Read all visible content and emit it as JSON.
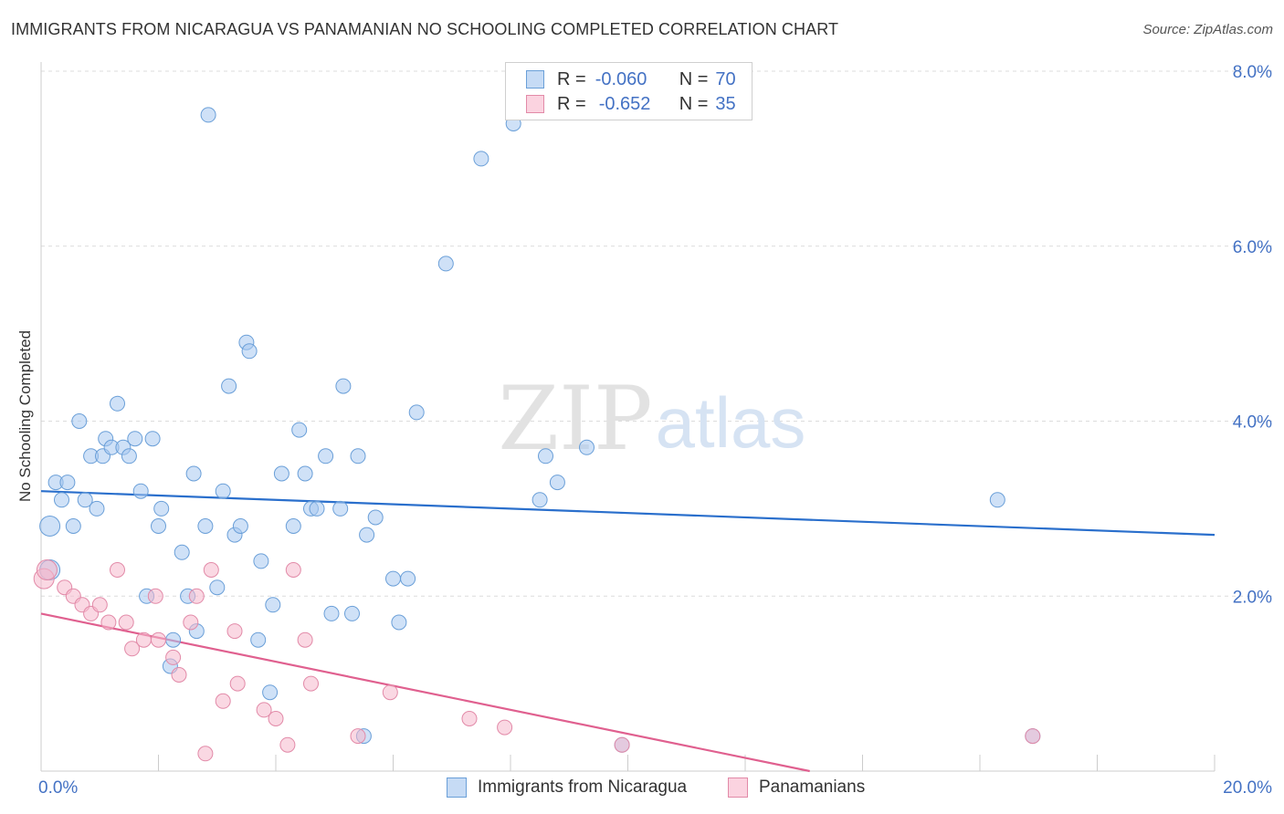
{
  "title": "IMMIGRANTS FROM NICARAGUA VS PANAMANIAN NO SCHOOLING COMPLETED CORRELATION CHART",
  "source": "Source: ZipAtlas.com",
  "watermark": {
    "zip": "ZIP",
    "atlas": "atlas"
  },
  "legend": {
    "rows": [
      {
        "r_label": "R =",
        "r_value": "-0.060",
        "n_label": "N =",
        "n_value": "70",
        "color": "#a8c8f0"
      },
      {
        "r_label": "R =",
        "r_value": "-0.652",
        "n_label": "N =",
        "n_value": "35",
        "color": "#f6b8cc"
      }
    ]
  },
  "bottom_legend": [
    "Immigrants from Nicaragua",
    "Panamanians"
  ],
  "chart_data": {
    "type": "scatter",
    "ylabel": "No Schooling Completed",
    "xlim": [
      0,
      20
    ],
    "ylim": [
      0,
      8
    ],
    "x_tick_labels": [
      "0.0%",
      "20.0%"
    ],
    "y_tick_labels": [
      "2.0%",
      "4.0%",
      "6.0%",
      "8.0%"
    ],
    "y_ticks": [
      2,
      4,
      6,
      8
    ],
    "grid": true,
    "legend_placement": "top-center",
    "series": [
      {
        "name": "Immigrants from Nicaragua",
        "color": "#a8c8f0",
        "stroke": "#6a9fd8",
        "trend_color": "#2a6fcc",
        "trend": [
          [
            0,
            3.2
          ],
          [
            20,
            2.7
          ]
        ],
        "points": [
          [
            0.15,
            2.3
          ],
          [
            0.15,
            2.8
          ],
          [
            0.25,
            3.3
          ],
          [
            0.35,
            3.1
          ],
          [
            0.45,
            3.3
          ],
          [
            0.55,
            2.8
          ],
          [
            0.65,
            4.0
          ],
          [
            0.75,
            3.1
          ],
          [
            0.85,
            3.6
          ],
          [
            0.95,
            3.0
          ],
          [
            1.05,
            3.6
          ],
          [
            1.1,
            3.8
          ],
          [
            1.2,
            3.7
          ],
          [
            1.3,
            4.2
          ],
          [
            1.4,
            3.7
          ],
          [
            1.5,
            3.6
          ],
          [
            1.6,
            3.8
          ],
          [
            1.7,
            3.2
          ],
          [
            1.8,
            2.0
          ],
          [
            1.9,
            3.8
          ],
          [
            2.0,
            2.8
          ],
          [
            2.05,
            3.0
          ],
          [
            2.2,
            1.2
          ],
          [
            2.25,
            1.5
          ],
          [
            2.4,
            2.5
          ],
          [
            2.5,
            2.0
          ],
          [
            2.6,
            3.4
          ],
          [
            2.65,
            1.6
          ],
          [
            2.8,
            2.8
          ],
          [
            2.85,
            7.5
          ],
          [
            3.0,
            2.1
          ],
          [
            3.1,
            3.2
          ],
          [
            3.2,
            4.4
          ],
          [
            3.3,
            2.7
          ],
          [
            3.4,
            2.8
          ],
          [
            3.5,
            4.9
          ],
          [
            3.55,
            4.8
          ],
          [
            3.7,
            1.5
          ],
          [
            3.75,
            2.4
          ],
          [
            3.9,
            0.9
          ],
          [
            3.95,
            1.9
          ],
          [
            4.1,
            3.4
          ],
          [
            4.3,
            2.8
          ],
          [
            4.4,
            3.9
          ],
          [
            4.5,
            3.4
          ],
          [
            4.6,
            3.0
          ],
          [
            4.7,
            3.0
          ],
          [
            4.85,
            3.6
          ],
          [
            4.95,
            1.8
          ],
          [
            5.1,
            3.0
          ],
          [
            5.15,
            4.4
          ],
          [
            5.3,
            1.8
          ],
          [
            5.4,
            3.6
          ],
          [
            5.5,
            0.4
          ],
          [
            5.55,
            2.7
          ],
          [
            5.7,
            2.9
          ],
          [
            6.0,
            2.2
          ],
          [
            6.1,
            1.7
          ],
          [
            6.25,
            2.2
          ],
          [
            6.4,
            4.1
          ],
          [
            6.9,
            5.8
          ],
          [
            7.5,
            7.0
          ],
          [
            8.05,
            7.4
          ],
          [
            8.5,
            3.1
          ],
          [
            8.6,
            3.6
          ],
          [
            8.8,
            3.3
          ],
          [
            9.3,
            3.7
          ],
          [
            9.9,
            0.3
          ],
          [
            16.3,
            3.1
          ],
          [
            16.9,
            0.4
          ]
        ]
      },
      {
        "name": "Panamanians",
        "color": "#f6b8cc",
        "stroke": "#e28aa8",
        "trend_color": "#e0608f",
        "trend": [
          [
            0,
            1.8
          ],
          [
            13.1,
            0
          ]
        ],
        "points": [
          [
            0.05,
            2.2
          ],
          [
            0.1,
            2.3
          ],
          [
            0.4,
            2.1
          ],
          [
            0.55,
            2.0
          ],
          [
            0.7,
            1.9
          ],
          [
            0.85,
            1.8
          ],
          [
            1.0,
            1.9
          ],
          [
            1.15,
            1.7
          ],
          [
            1.3,
            2.3
          ],
          [
            1.45,
            1.7
          ],
          [
            1.55,
            1.4
          ],
          [
            1.75,
            1.5
          ],
          [
            1.95,
            2.0
          ],
          [
            2.0,
            1.5
          ],
          [
            2.25,
            1.3
          ],
          [
            2.35,
            1.1
          ],
          [
            2.55,
            1.7
          ],
          [
            2.65,
            2.0
          ],
          [
            2.8,
            0.2
          ],
          [
            2.9,
            2.3
          ],
          [
            3.1,
            0.8
          ],
          [
            3.3,
            1.6
          ],
          [
            3.35,
            1.0
          ],
          [
            3.8,
            0.7
          ],
          [
            4.0,
            0.6
          ],
          [
            4.2,
            0.3
          ],
          [
            4.3,
            2.3
          ],
          [
            4.5,
            1.5
          ],
          [
            4.6,
            1.0
          ],
          [
            5.4,
            0.4
          ],
          [
            5.95,
            0.9
          ],
          [
            7.3,
            0.6
          ],
          [
            7.9,
            0.5
          ],
          [
            9.9,
            0.3
          ],
          [
            16.9,
            0.4
          ]
        ]
      }
    ]
  }
}
